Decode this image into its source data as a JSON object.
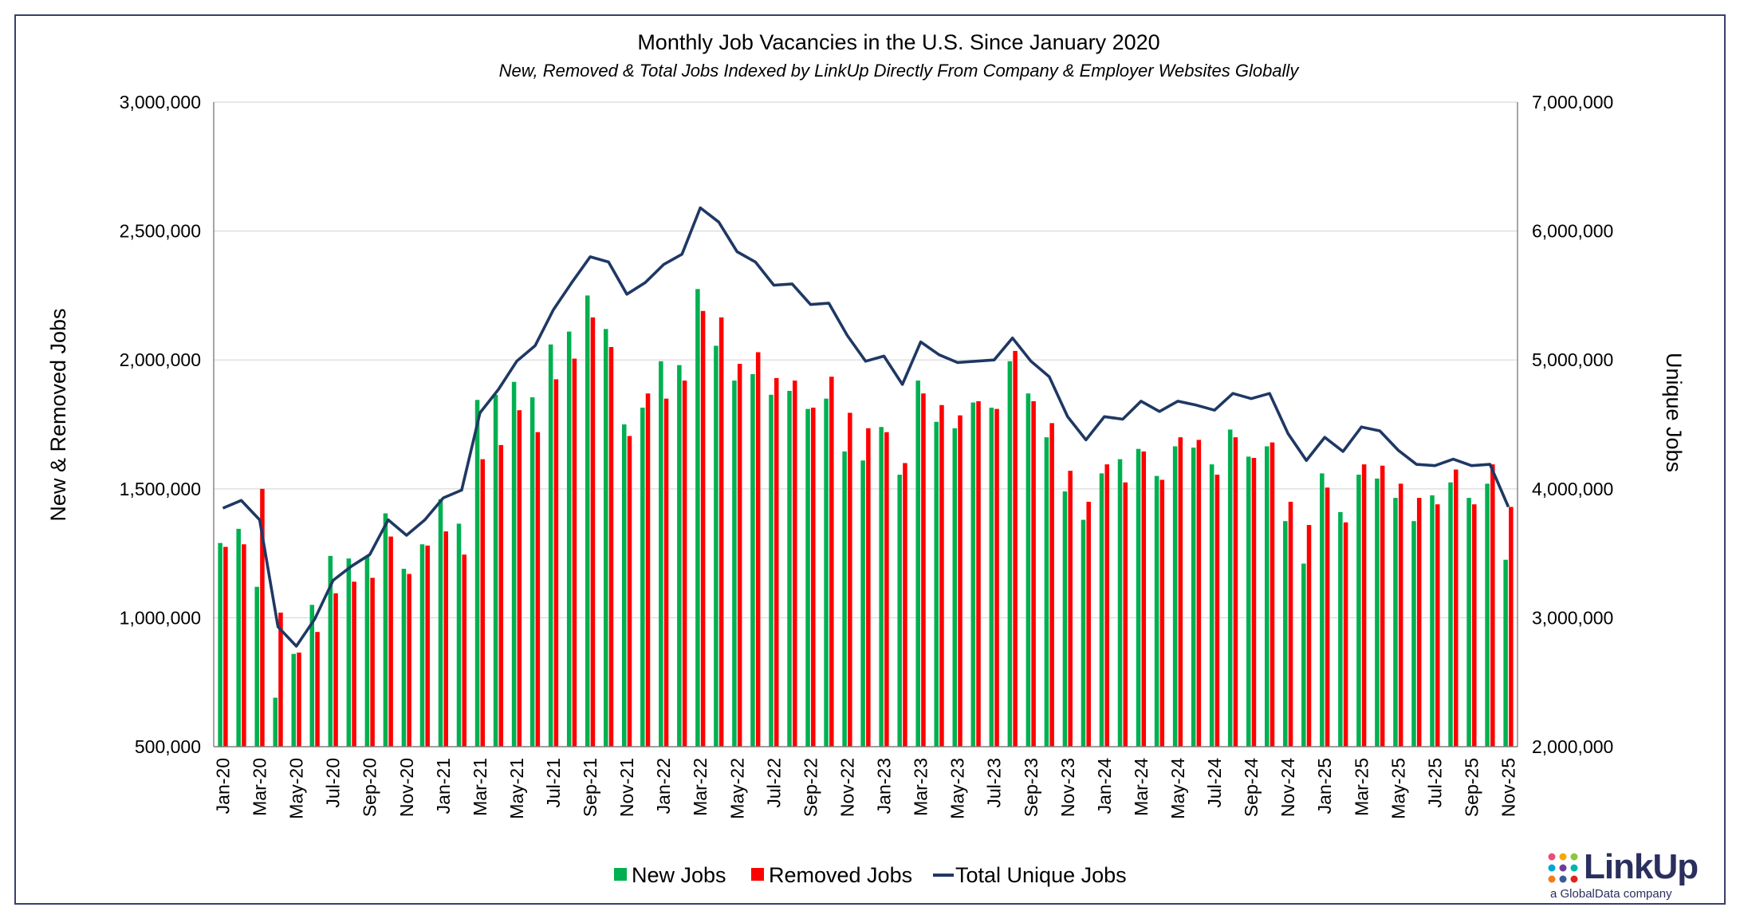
{
  "colors": {
    "new_jobs": "#00b050",
    "removed_jobs": "#ff0000",
    "total": "#1f3864",
    "grid": "#d9d9d9",
    "axis": "#7f7f7f"
  },
  "logo": {
    "name": "LinkUp",
    "tagline": "a GlobalData company"
  },
  "chart_data": {
    "type": "bar+line",
    "title": "Monthly Job Vacancies in the U.S. Since January 2020",
    "subtitle": "New, Removed & Total Jobs Indexed by LinkUp Directly From Company & Employer Websites Globally",
    "ylabel_left": "New & Removed Jobs",
    "ylabel_right": "Unique Jobs",
    "ylim_left": [
      500000,
      3000000
    ],
    "ylim_right": [
      2000000,
      7000000
    ],
    "yticks_left": [
      500000,
      1000000,
      1500000,
      2000000,
      2500000,
      3000000
    ],
    "yticks_right": [
      2000000,
      3000000,
      4000000,
      5000000,
      6000000,
      7000000
    ],
    "ytick_labels_left": [
      "500,000",
      "1,000,000",
      "1,500,000",
      "2,000,000",
      "2,500,000",
      "3,000,000"
    ],
    "ytick_labels_right": [
      "2,000,000",
      "3,000,000",
      "4,000,000",
      "5,000,000",
      "6,000,000",
      "7,000,000"
    ],
    "legend": [
      "New Jobs",
      "Removed Jobs",
      "Total Unique Jobs"
    ],
    "legend_position": "bottom",
    "xtick_labels": [
      "Jan-20",
      "Mar-20",
      "May-20",
      "Jul-20",
      "Sep-20",
      "Nov-20",
      "Jan-21",
      "Mar-21",
      "May-21",
      "Jul-21",
      "Sep-21",
      "Nov-21",
      "Jan-22",
      "Mar-22",
      "May-22",
      "Jul-22",
      "Sep-22",
      "Nov-22",
      "Jan-23",
      "Mar-23",
      "May-23",
      "Jul-23",
      "Sep-23",
      "Nov-23",
      "Jan-24",
      "Mar-24",
      "May-24",
      "Jul-24",
      "Sep-24",
      "Nov-24",
      "Jan-25",
      "Mar-25",
      "May-25",
      "Jul-25",
      "Sep-25",
      "Nov-25"
    ],
    "categories": [
      "Jan-20",
      "Feb-20",
      "Mar-20",
      "Apr-20",
      "May-20",
      "Jun-20",
      "Jul-20",
      "Aug-20",
      "Sep-20",
      "Oct-20",
      "Nov-20",
      "Dec-20",
      "Jan-21",
      "Feb-21",
      "Mar-21",
      "Apr-21",
      "May-21",
      "Jun-21",
      "Jul-21",
      "Aug-21",
      "Sep-21",
      "Oct-21",
      "Nov-21",
      "Dec-21",
      "Jan-22",
      "Feb-22",
      "Mar-22",
      "Apr-22",
      "May-22",
      "Jun-22",
      "Jul-22",
      "Aug-22",
      "Sep-22",
      "Oct-22",
      "Nov-22",
      "Dec-22",
      "Jan-23",
      "Feb-23",
      "Mar-23",
      "Apr-23",
      "May-23",
      "Jun-23",
      "Jul-23",
      "Aug-23",
      "Sep-23",
      "Oct-23",
      "Nov-23",
      "Dec-23",
      "Jan-24",
      "Feb-24",
      "Mar-24",
      "Apr-24",
      "May-24",
      "Jun-24",
      "Jul-24",
      "Aug-24",
      "Sep-24",
      "Oct-24",
      "Nov-24",
      "Dec-24",
      "Jan-25",
      "Feb-25",
      "Mar-25",
      "Apr-25",
      "May-25",
      "Jun-25",
      "Jul-25",
      "Aug-25",
      "Sep-25",
      "Oct-25",
      "Nov-25"
    ],
    "series": [
      {
        "name": "New Jobs",
        "axis": "left",
        "values": [
          1290000,
          1345000,
          1120000,
          690000,
          860000,
          1050000,
          1240000,
          1230000,
          1240000,
          1405000,
          1190000,
          1285000,
          1460000,
          1365000,
          1845000,
          1865000,
          1915000,
          1855000,
          2060000,
          2110000,
          2250000,
          2120000,
          1750000,
          1815000,
          1995000,
          1980000,
          2275000,
          2055000,
          1920000,
          1945000,
          1865000,
          1880000,
          1810000,
          1850000,
          1645000,
          1610000,
          1740000,
          1555000,
          1920000,
          1760000,
          1735000,
          1835000,
          1815000,
          1995000,
          1870000,
          1700000,
          1490000,
          1380000,
          1560000,
          1615000,
          1655000,
          1550000,
          1665000,
          1660000,
          1595000,
          1730000,
          1625000,
          1665000,
          1375000,
          1210000,
          1560000,
          1410000,
          1555000,
          1540000,
          1465000,
          1375000,
          1475000,
          1525000,
          1465000,
          1520000,
          1225000
        ]
      },
      {
        "name": "Removed Jobs",
        "axis": "left",
        "values": [
          1275000,
          1285000,
          1500000,
          1020000,
          865000,
          945000,
          1095000,
          1140000,
          1155000,
          1315000,
          1170000,
          1280000,
          1335000,
          1245000,
          1615000,
          1670000,
          1805000,
          1720000,
          1925000,
          2005000,
          2165000,
          2050000,
          1705000,
          1870000,
          1850000,
          1920000,
          2190000,
          2165000,
          1985000,
          2030000,
          1930000,
          1920000,
          1815000,
          1935000,
          1795000,
          1735000,
          1720000,
          1600000,
          1870000,
          1825000,
          1785000,
          1840000,
          1810000,
          2035000,
          1840000,
          1755000,
          1570000,
          1450000,
          1595000,
          1525000,
          1645000,
          1535000,
          1700000,
          1690000,
          1555000,
          1700000,
          1620000,
          1680000,
          1450000,
          1360000,
          1505000,
          1370000,
          1595000,
          1590000,
          1520000,
          1465000,
          1440000,
          1575000,
          1440000,
          1595000,
          1430000
        ]
      },
      {
        "name": "Total Unique Jobs",
        "axis": "right",
        "type": "line",
        "values": [
          3850000,
          3910000,
          3760000,
          2930000,
          2780000,
          2990000,
          3290000,
          3400000,
          3490000,
          3760000,
          3640000,
          3760000,
          3930000,
          3990000,
          4590000,
          4770000,
          4990000,
          5110000,
          5390000,
          5600000,
          5800000,
          5760000,
          5510000,
          5600000,
          5740000,
          5820000,
          6180000,
          6070000,
          5840000,
          5760000,
          5580000,
          5590000,
          5430000,
          5440000,
          5190000,
          4990000,
          5030000,
          4810000,
          5140000,
          5040000,
          4980000,
          4990000,
          5000000,
          5170000,
          4990000,
          4870000,
          4560000,
          4380000,
          4560000,
          4540000,
          4680000,
          4600000,
          4680000,
          4650000,
          4610000,
          4740000,
          4700000,
          4740000,
          4430000,
          4220000,
          4400000,
          4290000,
          4480000,
          4450000,
          4300000,
          4190000,
          4180000,
          4230000,
          4180000,
          4190000,
          3860000
        ]
      }
    ]
  }
}
